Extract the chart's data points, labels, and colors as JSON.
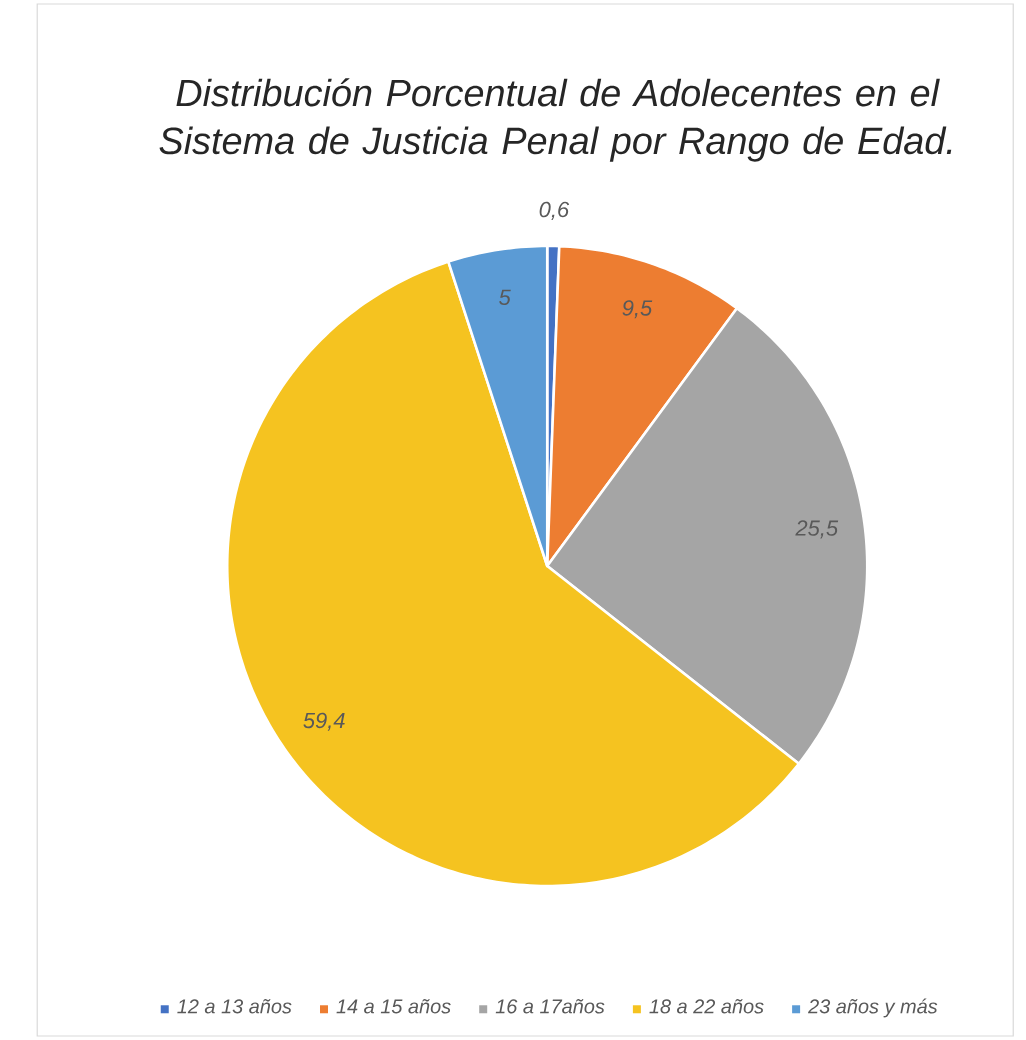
{
  "chart_data": {
    "type": "pie",
    "title": "Distribución Porcentual de Adolecentes en el Sistema de Justicia Penal por Rango de Edad.",
    "categories": [
      "12 a 13 años",
      "14 a 15 años",
      "16 a 17años",
      "18 a 22 años",
      "23 años y más"
    ],
    "values": [
      0.6,
      9.5,
      25.5,
      59.4,
      5
    ],
    "value_labels": [
      "0,6",
      "9,5",
      "25,5",
      "59,4",
      "5"
    ],
    "colors": [
      "#4472c4",
      "#ed7d31",
      "#a5a5a5",
      "#f5c320",
      "#5b9bd5"
    ],
    "legend": "bottom"
  }
}
